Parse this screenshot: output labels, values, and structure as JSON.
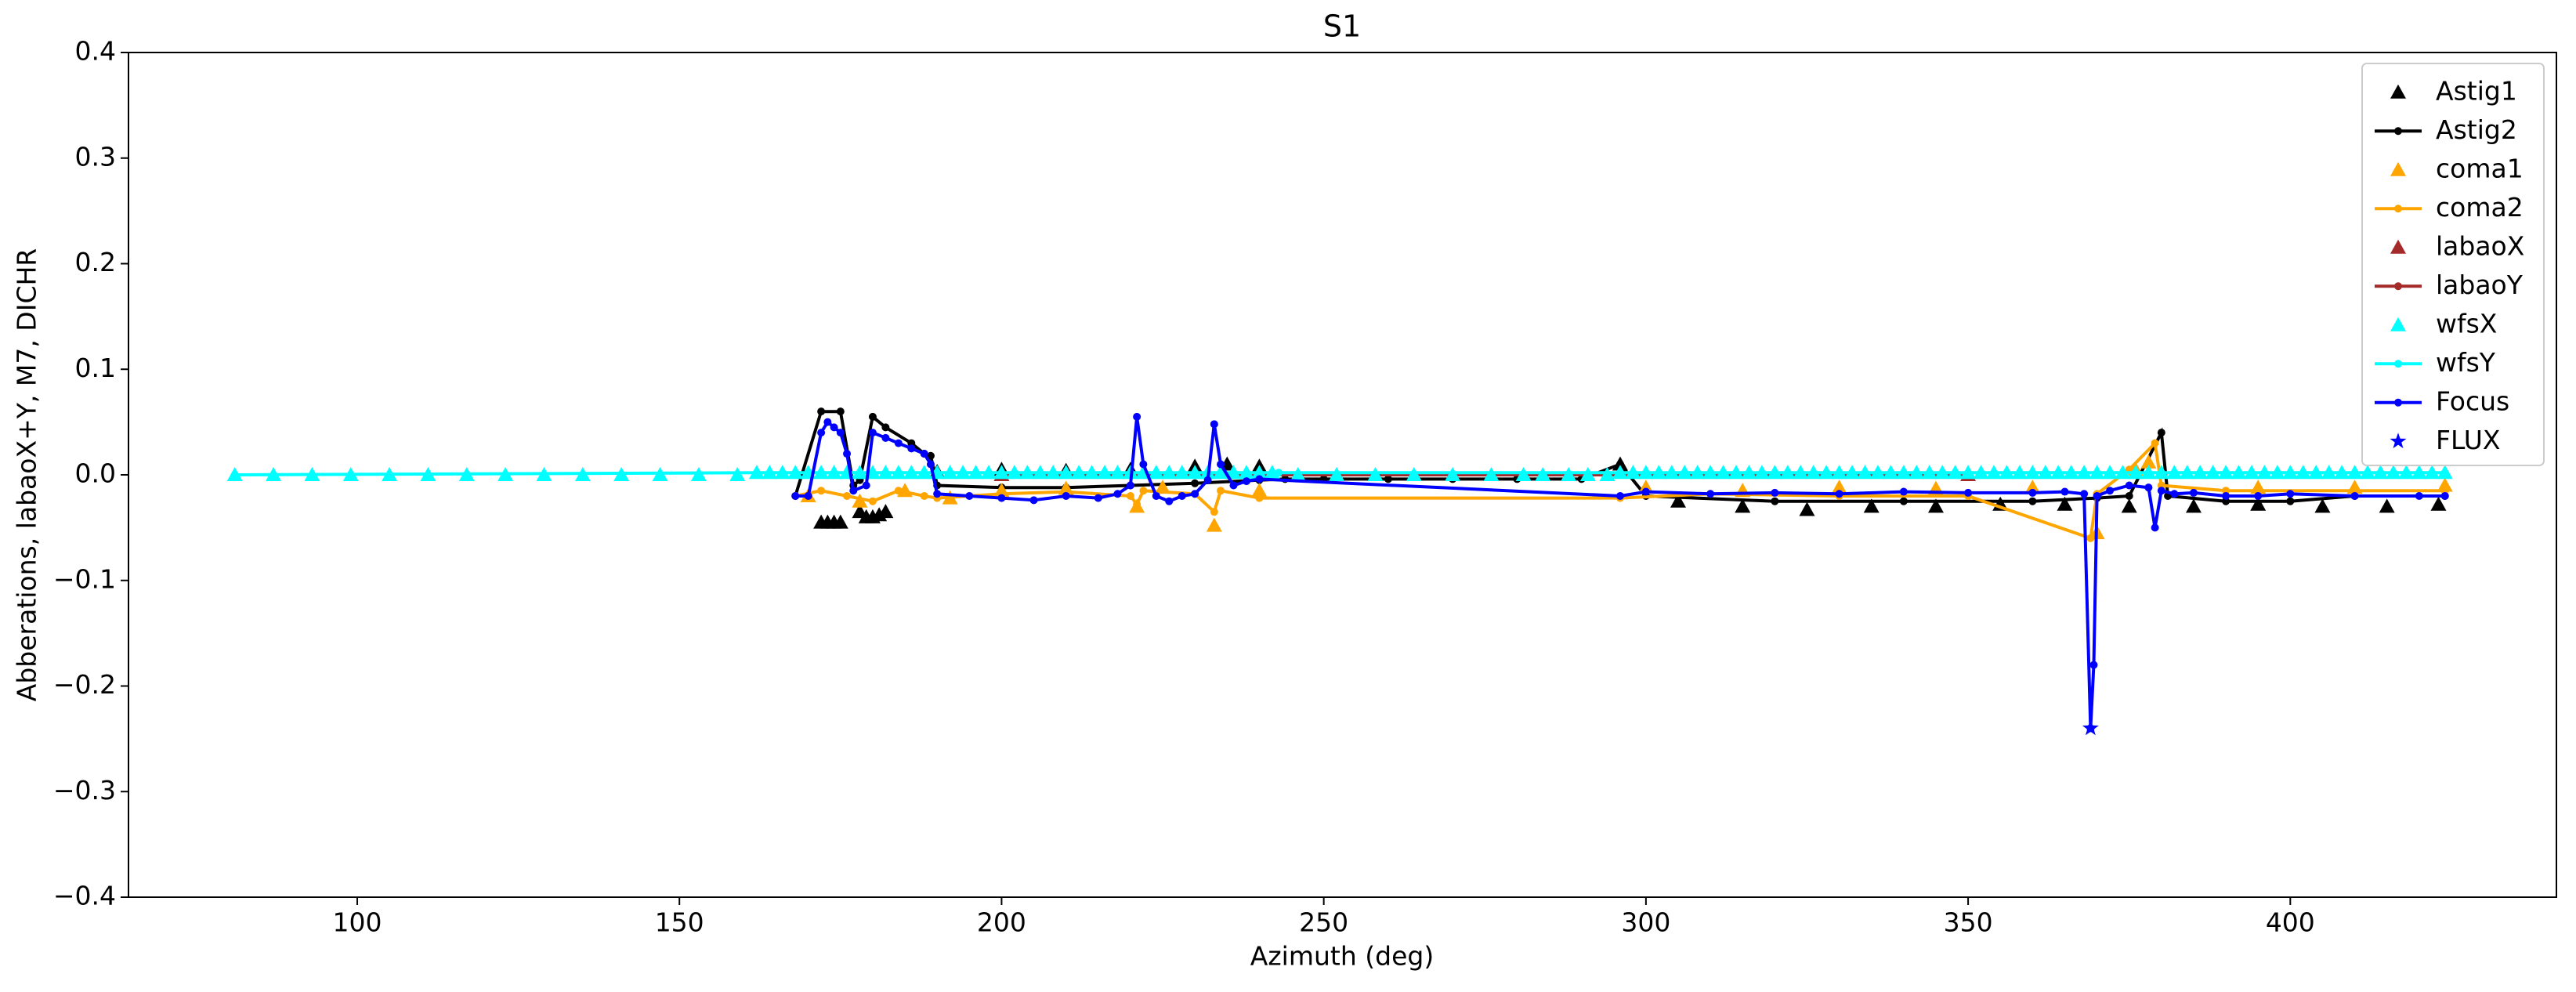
{
  "chart_data": {
    "type": "line",
    "title": "S1",
    "x_label": "Azimuth (deg)",
    "y_label": "Abberations, labaoX+Y, M7, DICHR",
    "xlim": [
      64.5,
      441.3
    ],
    "ylim": [
      -0.4,
      0.4
    ],
    "xticks": [
      100,
      150,
      200,
      250,
      300,
      350,
      400
    ],
    "yticks": [
      {
        "value": -0.4,
        "label": "−0.4"
      },
      {
        "value": -0.3,
        "label": "−0.3"
      },
      {
        "value": -0.2,
        "label": "−0.2"
      },
      {
        "value": -0.1,
        "label": "−0.1"
      },
      {
        "value": 0,
        "label": "0.0"
      },
      0.1,
      0.2,
      0.3,
      0.4
    ],
    "legend": "upper right",
    "series": [
      {
        "name": "Astig1",
        "color": "#000000",
        "style": "triangle",
        "x": [
          172,
          173,
          174,
          175,
          178,
          179,
          180,
          181,
          182,
          190,
          200,
          210,
          220,
          230,
          235,
          240,
          296,
          305,
          315,
          325,
          335,
          345,
          355,
          365,
          375,
          385,
          395,
          405,
          415,
          423
        ],
        "values": [
          -0.045,
          -0.045,
          -0.045,
          -0.045,
          -0.035,
          -0.04,
          -0.04,
          -0.038,
          -0.035,
          0.003,
          0.005,
          0.004,
          0.005,
          0.008,
          0.01,
          0.008,
          0.01,
          -0.025,
          -0.03,
          -0.033,
          -0.03,
          -0.03,
          -0.028,
          -0.028,
          -0.03,
          -0.03,
          -0.028,
          -0.03,
          -0.03,
          -0.028
        ]
      },
      {
        "name": "Astig2",
        "color": "#000000",
        "style": "line",
        "x": [
          168,
          172,
          175,
          177,
          178,
          180,
          182,
          186,
          188,
          189,
          190,
          200,
          210,
          220,
          230,
          240,
          244,
          250,
          260,
          270,
          280,
          290,
          296,
          300,
          320,
          340,
          360,
          370,
          375,
          380,
          381,
          390,
          400,
          410,
          424
        ],
        "values": [
          -0.02,
          0.06,
          0.06,
          -0.01,
          -0.005,
          0.055,
          0.045,
          0.03,
          0.02,
          0.018,
          -0.01,
          -0.012,
          -0.012,
          -0.01,
          -0.008,
          -0.005,
          -0.004,
          -0.004,
          -0.004,
          -0.004,
          -0.004,
          -0.004,
          0.01,
          -0.02,
          -0.025,
          -0.025,
          -0.025,
          -0.022,
          -0.02,
          0.04,
          -0.02,
          -0.025,
          -0.025,
          -0.02,
          -0.02
        ]
      },
      {
        "name": "coma1",
        "color": "#ffa500",
        "style": "triangle",
        "x": [
          170,
          178,
          185,
          192,
          200,
          210,
          221,
          225,
          233,
          240,
          300,
          315,
          330,
          345,
          360,
          370,
          376,
          378,
          395,
          410,
          424
        ],
        "values": [
          -0.02,
          -0.025,
          -0.015,
          -0.022,
          -0.015,
          -0.013,
          -0.03,
          -0.012,
          -0.048,
          -0.015,
          -0.012,
          -0.015,
          -0.012,
          -0.013,
          -0.012,
          -0.055,
          0.005,
          0.012,
          -0.012,
          -0.012,
          -0.01
        ]
      },
      {
        "name": "coma2",
        "color": "#ffa500",
        "style": "line",
        "x": [
          168,
          172,
          176,
          180,
          184,
          188,
          190,
          200,
          210,
          220,
          221,
          222,
          230,
          233,
          234,
          240,
          296,
          310,
          330,
          350,
          369,
          370,
          375,
          379,
          380,
          390,
          410,
          424
        ],
        "values": [
          -0.02,
          -0.015,
          -0.02,
          -0.025,
          -0.015,
          -0.02,
          -0.022,
          -0.018,
          -0.016,
          -0.02,
          -0.028,
          -0.015,
          -0.018,
          -0.035,
          -0.015,
          -0.022,
          -0.022,
          -0.018,
          -0.02,
          -0.02,
          -0.06,
          -0.018,
          0.005,
          0.03,
          -0.01,
          -0.015,
          -0.015,
          -0.015
        ]
      },
      {
        "name": "labaoX",
        "color": "#a52a2a",
        "style": "triangle",
        "x": [
          200,
          350
        ],
        "values": [
          0,
          0
        ]
      },
      {
        "name": "labaoY",
        "color": "#a52a2a",
        "style": "line",
        "x": [
          200,
          350
        ],
        "values": [
          0,
          0
        ]
      },
      {
        "name": "wfsX",
        "color": "#00ffff",
        "style": "triangle",
        "x": [
          81,
          87,
          93,
          99,
          105,
          111,
          117,
          123,
          129,
          135,
          141,
          147,
          153,
          159,
          162,
          164,
          166,
          168,
          170,
          172,
          174,
          176,
          178,
          180,
          182,
          184,
          186,
          188,
          190,
          192,
          194,
          196,
          198,
          200,
          202,
          204,
          206,
          208,
          210,
          212,
          214,
          216,
          218,
          220,
          222,
          224,
          226,
          228,
          230,
          232,
          234,
          236,
          238,
          240,
          242,
          246,
          252,
          258,
          264,
          270,
          276,
          281,
          284,
          288,
          291,
          294,
          296,
          298,
          300,
          302,
          304,
          306,
          308,
          310,
          312,
          314,
          316,
          318,
          320,
          322,
          324,
          326,
          328,
          330,
          332,
          334,
          336,
          338,
          340,
          342,
          344,
          346,
          348,
          350,
          352,
          354,
          356,
          358,
          360,
          362,
          364,
          366,
          368,
          370,
          372,
          374,
          376,
          378,
          380,
          382,
          384,
          386,
          388,
          390,
          392,
          394,
          396,
          398,
          400,
          402,
          404,
          406,
          408,
          410,
          412,
          414,
          416,
          418,
          420,
          422,
          424
        ],
        "values": [
          0,
          0,
          0,
          0,
          0,
          0,
          0,
          0,
          0,
          0,
          0,
          0,
          0,
          0,
          0.002,
          0.002,
          0.002,
          0.002,
          0.002,
          0.002,
          0.002,
          0.002,
          0.002,
          0.002,
          0.002,
          0.002,
          0.002,
          0.002,
          0.002,
          0.002,
          0.002,
          0.002,
          0.002,
          0.002,
          0.002,
          0.002,
          0.002,
          0.002,
          0.002,
          0.002,
          0.002,
          0.002,
          0.002,
          0.002,
          0.002,
          0.002,
          0.002,
          0.002,
          0.002,
          0.002,
          0.002,
          0.002,
          0.002,
          0.002,
          0.002,
          0,
          0,
          0,
          0,
          0,
          0,
          0,
          0,
          0,
          0,
          0,
          0.002,
          0.002,
          0.002,
          0.002,
          0.002,
          0.002,
          0.002,
          0.002,
          0.002,
          0.002,
          0.002,
          0.002,
          0.002,
          0.002,
          0.002,
          0.002,
          0.002,
          0.002,
          0.002,
          0.002,
          0.002,
          0.002,
          0.002,
          0.002,
          0.002,
          0.002,
          0.002,
          0.002,
          0.002,
          0.002,
          0.002,
          0.002,
          0.002,
          0.002,
          0.002,
          0.002,
          0.002,
          0.002,
          0.002,
          0.002,
          0.002,
          0.002,
          0.002,
          0.002,
          0.002,
          0.002,
          0.002,
          0.002,
          0.002,
          0.002,
          0.002,
          0.002,
          0.002,
          0.002,
          0.002,
          0.002,
          0.002,
          0.002,
          0.002,
          0.002,
          0.002,
          0.002,
          0.002,
          0.002,
          0.002
        ]
      },
      {
        "name": "wfsY",
        "color": "#00ffff",
        "style": "line",
        "x": [
          81,
          162,
          243,
          296,
          424
        ],
        "values": [
          0,
          0.002,
          0.002,
          0.002,
          0.002
        ]
      },
      {
        "name": "Focus",
        "color": "#0000ff",
        "style": "line",
        "x": [
          168,
          170,
          172,
          173,
          174,
          175,
          176,
          177,
          179,
          180,
          182,
          184,
          186,
          188,
          189,
          190,
          195,
          200,
          205,
          210,
          215,
          218,
          220,
          221,
          222,
          224,
          226,
          228,
          230,
          232,
          233,
          234,
          236,
          238,
          240,
          296,
          300,
          310,
          320,
          330,
          340,
          350,
          360,
          365,
          368,
          369,
          369.5,
          370,
          372,
          375,
          378,
          379,
          380,
          382,
          385,
          390,
          395,
          400,
          410,
          420,
          424
        ],
        "values": [
          -0.02,
          -0.02,
          0.04,
          0.05,
          0.045,
          0.04,
          0.02,
          -0.015,
          -0.01,
          0.04,
          0.035,
          0.03,
          0.025,
          0.02,
          0.01,
          -0.018,
          -0.02,
          -0.022,
          -0.024,
          -0.02,
          -0.022,
          -0.018,
          -0.01,
          0.055,
          0.01,
          -0.02,
          -0.025,
          -0.02,
          -0.018,
          -0.005,
          0.048,
          0.01,
          -0.01,
          -0.006,
          -0.004,
          -0.02,
          -0.016,
          -0.018,
          -0.017,
          -0.018,
          -0.016,
          -0.017,
          -0.017,
          -0.016,
          -0.018,
          -0.24,
          -0.18,
          -0.02,
          -0.015,
          -0.01,
          -0.012,
          -0.05,
          -0.015,
          -0.018,
          -0.017,
          -0.02,
          -0.02,
          -0.018,
          -0.02,
          -0.02,
          -0.02
        ]
      },
      {
        "name": "FLUX",
        "color": "#0000ff",
        "style": "star",
        "x": [
          369
        ],
        "values": [
          -0.24
        ]
      }
    ]
  }
}
